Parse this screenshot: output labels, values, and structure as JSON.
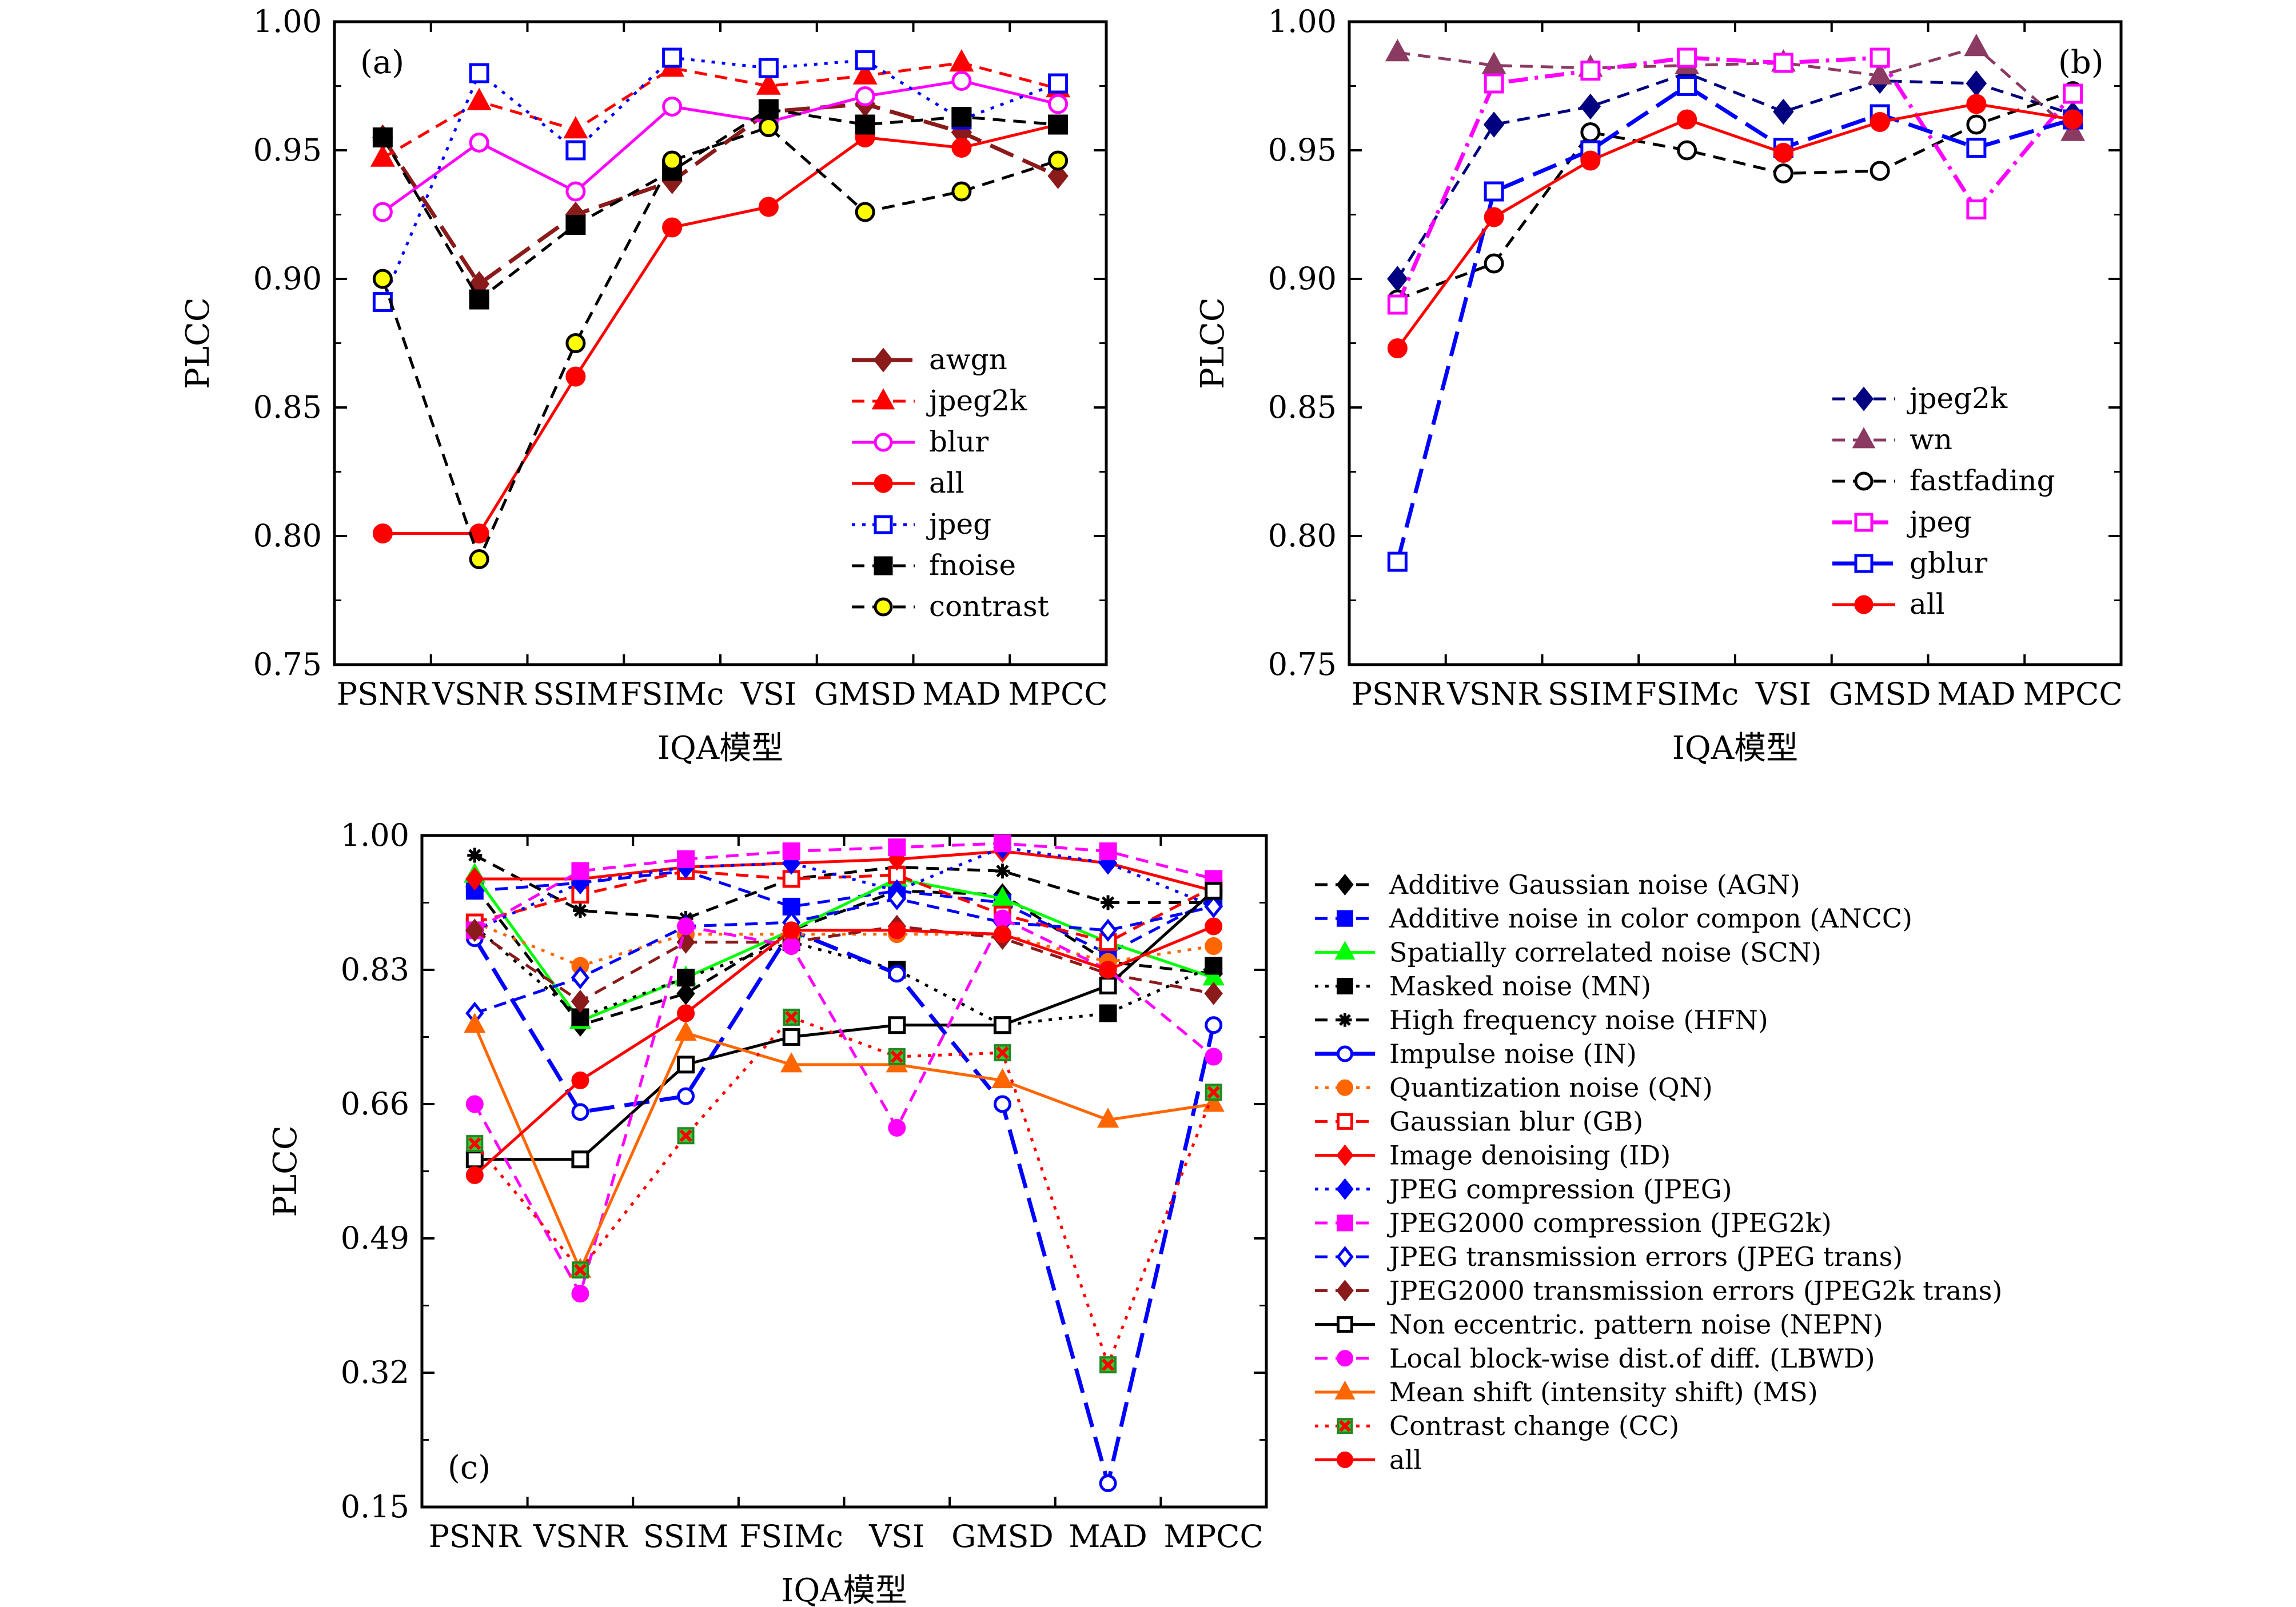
{
  "chart_data": [
    {
      "panel_label": "(a)",
      "type": "line",
      "x": [
        "PSNR",
        "VSNR",
        "SSIM",
        "FSIMc",
        "VSI",
        "GMSD",
        "MAD",
        "MPCC"
      ],
      "xlabel": "IQA模型",
      "ylabel": "PLCC",
      "ylim": [
        0.75,
        1.0
      ],
      "yticks": [
        "0.75",
        "0.80",
        "0.85",
        "0.90",
        "0.95",
        "1.00"
      ],
      "legend_position": "bottom-right",
      "series": [
        {
          "name": "awgn",
          "color": "#8b1a1a",
          "dash": "long",
          "marker": "diamond",
          "fill": true,
          "values": [
            0.955,
            0.898,
            0.925,
            0.938,
            0.965,
            0.968,
            0.957,
            0.94
          ]
        },
        {
          "name": "jpeg2k",
          "color": "#ff0000",
          "dash": "dash",
          "marker": "triangle",
          "fill": true,
          "values": [
            0.947,
            0.969,
            0.958,
            0.982,
            0.975,
            0.979,
            0.984,
            0.974
          ]
        },
        {
          "name": "blur",
          "color": "#ff00ff",
          "dash": "solid",
          "marker": "circle",
          "fill": false,
          "values": [
            0.926,
            0.953,
            0.934,
            0.967,
            0.961,
            0.971,
            0.977,
            0.968
          ]
        },
        {
          "name": "all",
          "color": "#ff0000",
          "dash": "solid",
          "marker": "circle",
          "fill": true,
          "values": [
            0.801,
            0.801,
            0.862,
            0.92,
            0.928,
            0.955,
            0.951,
            0.96
          ]
        },
        {
          "name": "jpeg",
          "color": "#0000ff",
          "dash": "dot",
          "marker": "square",
          "fill": false,
          "values": [
            0.891,
            0.98,
            0.95,
            0.986,
            0.982,
            0.985,
            0.962,
            0.976
          ]
        },
        {
          "name": "fnoise",
          "color": "#000000",
          "dash": "dash",
          "marker": "square",
          "fill": true,
          "values": [
            0.955,
            0.892,
            0.921,
            0.942,
            0.966,
            0.96,
            0.963,
            0.96
          ]
        },
        {
          "name": "contrast",
          "color": "#000000",
          "dash": "dash",
          "marker": "circle",
          "fill": true,
          "fillColor": "#ffff00",
          "values": [
            0.9,
            0.791,
            0.875,
            0.946,
            0.959,
            0.926,
            0.934,
            0.946
          ]
        }
      ]
    },
    {
      "panel_label": "(b)",
      "type": "line",
      "x": [
        "PSNR",
        "VSNR",
        "SSIM",
        "FSIMc",
        "VSI",
        "GMSD",
        "MAD",
        "MPCC"
      ],
      "xlabel": "IQA模型",
      "ylabel": "PLCC",
      "ylim": [
        0.75,
        1.0
      ],
      "yticks": [
        "0.75",
        "0.80",
        "0.85",
        "0.90",
        "0.95",
        "1.00"
      ],
      "legend_position": "bottom-right",
      "series": [
        {
          "name": "jpeg2k",
          "color": "#000080",
          "dash": "dash",
          "marker": "diamond",
          "fill": true,
          "values": [
            0.9,
            0.96,
            0.967,
            0.98,
            0.965,
            0.977,
            0.976,
            0.964
          ]
        },
        {
          "name": "wn",
          "color": "#8b3a62",
          "dash": "dash",
          "marker": "triangle",
          "fill": true,
          "values": [
            0.988,
            0.983,
            0.982,
            0.983,
            0.984,
            0.979,
            0.99,
            0.957
          ]
        },
        {
          "name": "fastfading",
          "color": "#000000",
          "dash": "dash",
          "marker": "circle",
          "fill": false,
          "values": [
            0.892,
            0.906,
            0.957,
            0.95,
            0.941,
            0.942,
            0.96,
            0.973
          ]
        },
        {
          "name": "jpeg",
          "color": "#ff00ff",
          "dash": "dashdot",
          "marker": "square",
          "fill": false,
          "values": [
            0.89,
            0.976,
            0.981,
            0.986,
            0.984,
            0.986,
            0.927,
            0.972
          ]
        },
        {
          "name": "gblur",
          "color": "#0000ff",
          "dash": "long",
          "marker": "square",
          "fill": false,
          "values": [
            0.79,
            0.934,
            0.95,
            0.975,
            0.951,
            0.964,
            0.951,
            0.962
          ]
        },
        {
          "name": "all",
          "color": "#ff0000",
          "dash": "solid",
          "marker": "circle",
          "fill": true,
          "values": [
            0.873,
            0.924,
            0.946,
            0.962,
            0.949,
            0.961,
            0.968,
            0.962
          ]
        }
      ]
    },
    {
      "panel_label": "(c)",
      "type": "line",
      "x": [
        "PSNR",
        "VSNR",
        "SSIM",
        "FSIMc",
        "VSI",
        "GMSD",
        "MAD",
        "MPCC"
      ],
      "xlabel": "IQA模型",
      "ylabel": "PLCC",
      "ylim": [
        0.15,
        1.0
      ],
      "yticks": [
        "0.15",
        "0.32",
        "0.49",
        "0.66",
        "0.83",
        "1.00"
      ],
      "legend_position": "outside-right",
      "series": [
        {
          "name": "Additive Gaussian noise (AGN)",
          "color": "#000000",
          "dash": "dash",
          "marker": "diamond",
          "fill": true,
          "values": [
            0.935,
            0.76,
            0.8,
            0.88,
            0.93,
            0.925,
            0.84,
            0.825
          ]
        },
        {
          "name": "Additive noise in color compon (ANCC)",
          "color": "#0000ff",
          "dash": "dash",
          "marker": "square",
          "fill": true,
          "values": [
            0.93,
            0.94,
            0.955,
            0.91,
            0.93,
            0.915,
            0.85,
            0.92
          ]
        },
        {
          "name": "Spatially correlated noise (SCN)",
          "color": "#00ff00",
          "dash": "solid",
          "marker": "triangle",
          "fill": true,
          "values": [
            0.95,
            0.765,
            0.82,
            0.88,
            0.945,
            0.92,
            0.865,
            0.82
          ]
        },
        {
          "name": "Masked noise (MN)",
          "color": "#000000",
          "dash": "dot",
          "marker": "square",
          "fill": true,
          "values": [
            0.885,
            0.77,
            0.82,
            0.865,
            0.83,
            0.76,
            0.775,
            0.835
          ]
        },
        {
          "name": "High frequency noise (HFN)",
          "color": "#000000",
          "dash": "dash",
          "marker": "asterisk",
          "fill": true,
          "values": [
            0.975,
            0.905,
            0.895,
            0.945,
            0.96,
            0.955,
            0.915,
            0.915
          ]
        },
        {
          "name": "Impulse noise (IN)",
          "color": "#0000ff",
          "dash": "long",
          "marker": "circle",
          "fill": false,
          "values": [
            0.87,
            0.65,
            0.67,
            0.88,
            0.825,
            0.66,
            0.18,
            0.76
          ]
        },
        {
          "name": "Quantization noise (QN)",
          "color": "#ff6600",
          "dash": "dot",
          "marker": "circle",
          "fill": true,
          "values": [
            0.89,
            0.835,
            0.875,
            0.875,
            0.875,
            0.875,
            0.84,
            0.86
          ]
        },
        {
          "name": "Gaussian blur (GB)",
          "color": "#ff0000",
          "dash": "dash",
          "marker": "square",
          "fill": false,
          "values": [
            0.89,
            0.925,
            0.955,
            0.945,
            0.95,
            0.9,
            0.865,
            0.935
          ]
        },
        {
          "name": "Image denoising (ID)",
          "color": "#ff0000",
          "dash": "solid",
          "marker": "diamond",
          "fill": true,
          "values": [
            0.945,
            0.945,
            0.96,
            0.965,
            0.97,
            0.98,
            0.965,
            0.93
          ]
        },
        {
          "name": "JPEG compression (JPEG)",
          "color": "#0000ff",
          "dash": "dot",
          "marker": "diamond",
          "fill": true,
          "values": [
            0.88,
            0.94,
            0.96,
            0.965,
            0.93,
            0.985,
            0.965,
            0.91
          ]
        },
        {
          "name": "JPEG2000 compression (JPEG2k)",
          "color": "#ff00ff",
          "dash": "dash",
          "marker": "square",
          "fill": true,
          "values": [
            0.88,
            0.955,
            0.97,
            0.98,
            0.985,
            0.99,
            0.98,
            0.945
          ]
        },
        {
          "name": "JPEG transmission errors (JPEG trans)",
          "color": "#0000ff",
          "dash": "dash",
          "marker": "diamond",
          "fill": false,
          "values": [
            0.775,
            0.82,
            0.885,
            0.89,
            0.92,
            0.89,
            0.88,
            0.91
          ]
        },
        {
          "name": "JPEG2000 transmission errors (JPEG2k trans)",
          "color": "#8b1a1a",
          "dash": "dash",
          "marker": "diamond",
          "fill": true,
          "values": [
            0.88,
            0.79,
            0.865,
            0.865,
            0.885,
            0.87,
            0.825,
            0.8
          ]
        },
        {
          "name": "Non eccentric. pattern noise (NEPN)",
          "color": "#000000",
          "dash": "solid",
          "marker": "square",
          "fill": false,
          "values": [
            0.59,
            0.59,
            0.71,
            0.745,
            0.76,
            0.76,
            0.81,
            0.93
          ]
        },
        {
          "name": "Local block-wise dist.of diff. (LBWD)",
          "color": "#ff00ff",
          "dash": "dash",
          "marker": "circle",
          "fill": true,
          "values": [
            0.66,
            0.42,
            0.885,
            0.86,
            0.63,
            0.895,
            0.83,
            0.72
          ]
        },
        {
          "name": "Mean shift (intensity shift) (MS)",
          "color": "#ff6600",
          "dash": "solid",
          "marker": "triangle",
          "fill": true,
          "values": [
            0.76,
            0.45,
            0.75,
            0.71,
            0.71,
            0.69,
            0.64,
            0.66
          ]
        },
        {
          "name": "Contrast change (CC)",
          "color": "#ff0000",
          "dash": "dot",
          "marker": "xbox",
          "fill": true,
          "fillColor": "#33cc33",
          "values": [
            0.61,
            0.45,
            0.62,
            0.77,
            0.72,
            0.725,
            0.33,
            0.675
          ]
        },
        {
          "name": "all",
          "color": "#ff0000",
          "dash": "solid",
          "marker": "circle",
          "fill": true,
          "values": [
            0.57,
            0.69,
            0.775,
            0.88,
            0.88,
            0.875,
            0.83,
            0.885
          ]
        }
      ]
    }
  ]
}
